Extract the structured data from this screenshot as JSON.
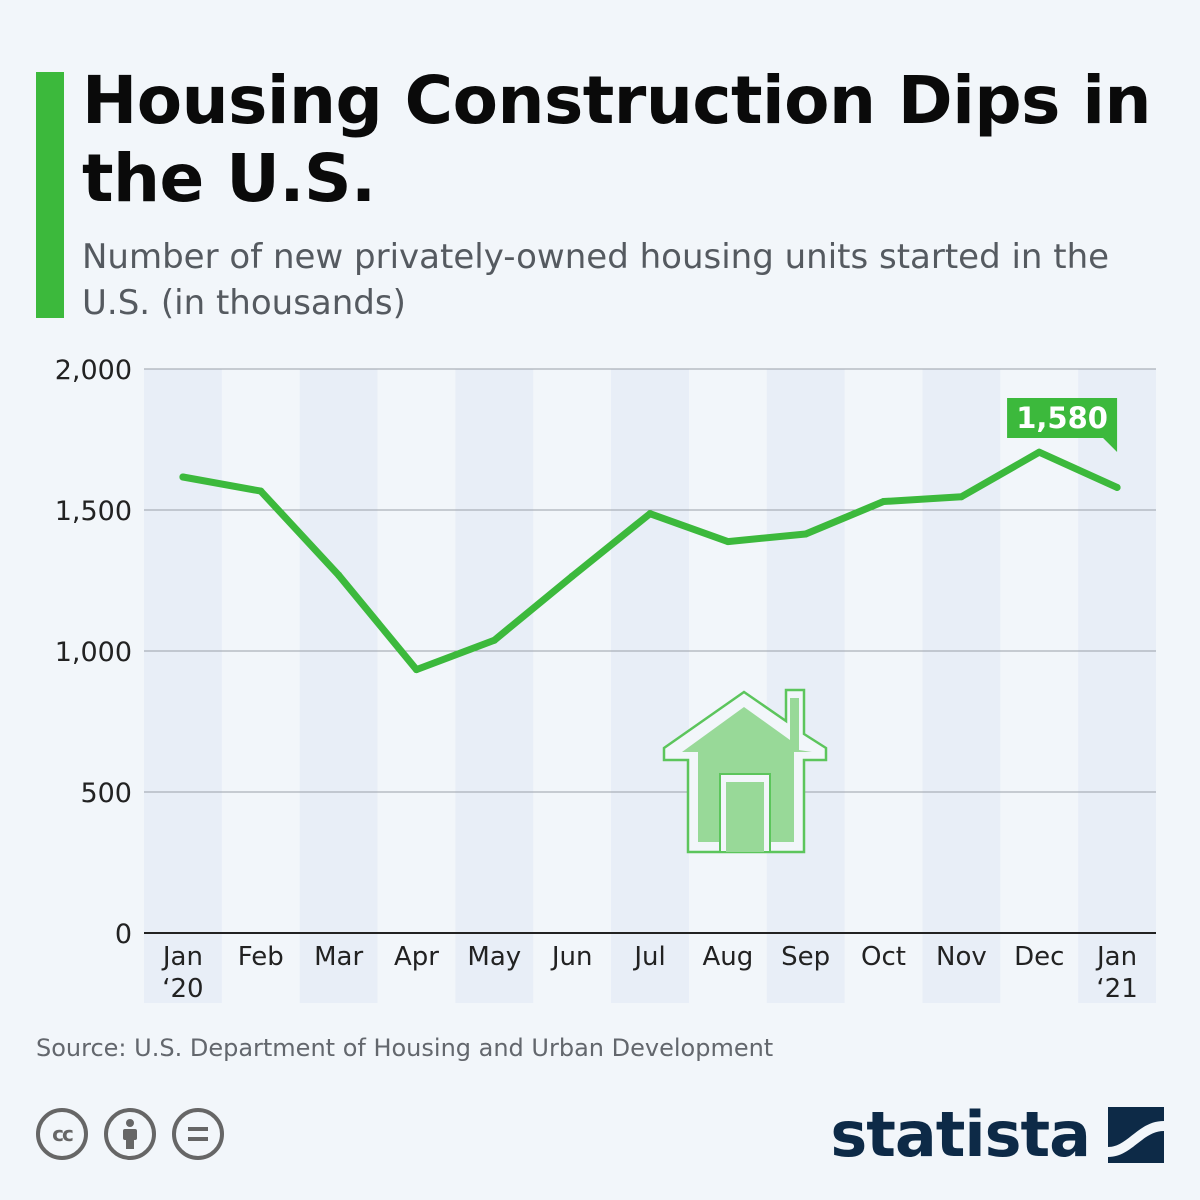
{
  "title": "Housing Construction Dips in the U.S.",
  "subtitle": "Number of new privately-owned housing units started in the U.S. (in thousands)",
  "source": "Source: U.S. Department of Housing and Urban Development",
  "brand": {
    "name": "statista",
    "logo_icon": "statista-logo-icon"
  },
  "license_icons": [
    "creative-commons-icon",
    "attribution-icon",
    "no-derivatives-icon"
  ],
  "illustration_icon": "house-icon",
  "colors": {
    "accent": "#3cb93c",
    "line": "#3cb93c",
    "band": "#e8eef7",
    "background": "#f2f6fa",
    "brand": "#0d2a47"
  },
  "chart_data": {
    "type": "line",
    "title": "",
    "xlabel": "",
    "ylabel": "",
    "ylim": [
      0,
      2000
    ],
    "yticks": [
      0,
      500,
      1000,
      1500,
      2000
    ],
    "ytick_labels": [
      "0",
      "500",
      "1,000",
      "1,500",
      "2,000"
    ],
    "categories": [
      "Jan '20",
      "Feb",
      "Mar",
      "Apr",
      "May",
      "Jun",
      "Jul",
      "Aug",
      "Sep",
      "Oct",
      "Nov",
      "Dec",
      "Jan '21"
    ],
    "category_labels": [
      [
        "Jan",
        "‘20"
      ],
      [
        "Feb"
      ],
      [
        "Mar"
      ],
      [
        "Apr"
      ],
      [
        "May"
      ],
      [
        "Jun"
      ],
      [
        "Jul"
      ],
      [
        "Aug"
      ],
      [
        "Sep"
      ],
      [
        "Oct"
      ],
      [
        "Nov"
      ],
      [
        "Dec"
      ],
      [
        "Jan",
        "‘21"
      ]
    ],
    "series": [
      {
        "values": [
          1617,
          1567,
          1269,
          934,
          1038,
          1265,
          1487,
          1388,
          1415,
          1530,
          1547,
          1705,
          1580
        ]
      }
    ],
    "annotations": [
      {
        "index": 12,
        "label": "1,580"
      }
    ],
    "grid": true,
    "legend": "none"
  }
}
